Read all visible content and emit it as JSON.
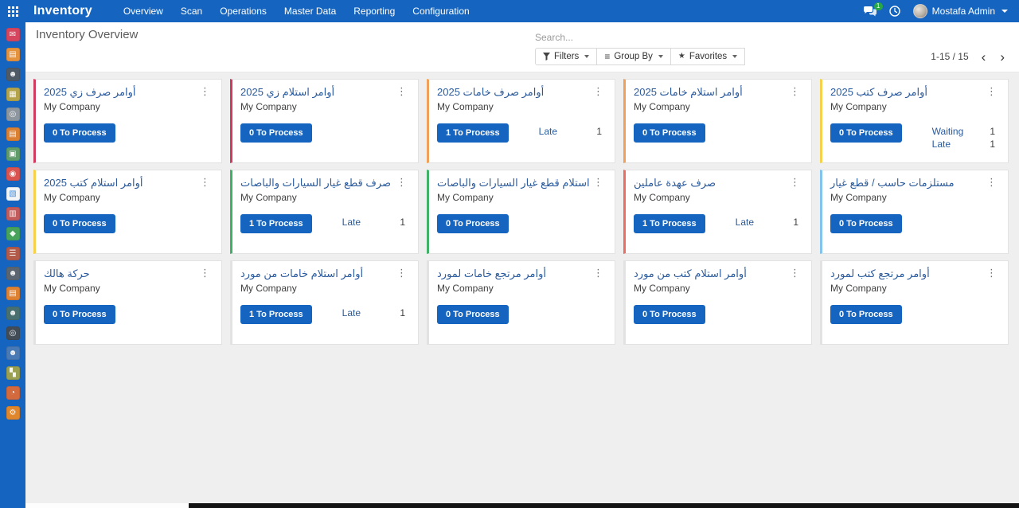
{
  "app": {
    "name": "Inventory"
  },
  "topbar": {
    "menus": [
      "Overview",
      "Scan",
      "Operations",
      "Master Data",
      "Reporting",
      "Configuration"
    ],
    "messages_badge": "1",
    "user_name": "Mostafa Admin"
  },
  "control_panel": {
    "breadcrumb": "Inventory Overview",
    "search_placeholder": "Search...",
    "filters_label": "Filters",
    "group_by_label": "Group By",
    "favorites_label": "Favorites",
    "pager": "1-15 / 15",
    "pager_prev": "‹",
    "pager_next": "›"
  },
  "kanban": {
    "cards": [
      {
        "title": "أوامر صرف زي 2025",
        "company": "My Company",
        "button": "0 To Process",
        "accent": "#d23b60",
        "stats": []
      },
      {
        "title": "أوامر استلام زي 2025",
        "company": "My Company",
        "button": "0 To Process",
        "accent": "#d23b60",
        "stats": []
      },
      {
        "title": "أوامر صرف خامات 2025",
        "company": "My Company",
        "button": "1 To Process",
        "accent": "#efa15c",
        "stats": [
          {
            "label": "Late",
            "value": "1"
          }
        ]
      },
      {
        "title": "أوامر استلام خامات 2025",
        "company": "My Company",
        "button": "0 To Process",
        "accent": "#efa15c",
        "stats": []
      },
      {
        "title": "أوامر صرف كتب 2025",
        "company": "My Company",
        "button": "0 To Process",
        "accent": "#f6d14c",
        "stats": [
          {
            "label": "Waiting",
            "value": "1"
          },
          {
            "label": "Late",
            "value": "1"
          }
        ]
      },
      {
        "title": "أوامر استلام كتب 2025",
        "company": "My Company",
        "button": "0 To Process",
        "accent": "#f6d14c",
        "stats": []
      },
      {
        "title": "صرف قطع غيار السيارات والباصات",
        "company": "My Company",
        "button": "1 To Process",
        "accent": "#41b168",
        "stats": [
          {
            "label": "Late",
            "value": "1"
          }
        ]
      },
      {
        "title": "استلام قطع غيار السيارات والباصات",
        "company": "My Company",
        "button": "0 To Process",
        "accent": "#41b168",
        "stats": []
      },
      {
        "title": "صرف عهدة عاملين",
        "company": "My Company",
        "button": "1 To Process",
        "accent": "#ec6d62",
        "stats": [
          {
            "label": "Late",
            "value": "1"
          }
        ]
      },
      {
        "title": "مستلزمات حاسب / قطع غيار",
        "company": "My Company",
        "button": "0 To Process",
        "accent": "#82c4ec",
        "stats": []
      },
      {
        "title": "حركة هالك",
        "company": "My Company",
        "button": "0 To Process",
        "accent": null,
        "stats": []
      },
      {
        "title": "أوامر استلام خامات من مورد",
        "company": "My Company",
        "button": "1 To Process",
        "accent": null,
        "stats": [
          {
            "label": "Late",
            "value": "1"
          }
        ]
      },
      {
        "title": "أوامر مرتجع خامات لمورد",
        "company": "My Company",
        "button": "0 To Process",
        "accent": null,
        "stats": []
      },
      {
        "title": "أوامر استلام كتب من مورد",
        "company": "My Company",
        "button": "0 To Process",
        "accent": null,
        "stats": []
      },
      {
        "title": "أوامر مرتجع كتب لمورد",
        "company": "My Company",
        "button": "0 To Process",
        "accent": null,
        "stats": []
      }
    ]
  },
  "sidebar": {
    "apps": [
      {
        "icon": "discuss-icon",
        "color": "#d6455e",
        "glyph": "✉"
      },
      {
        "icon": "documents-icon",
        "color": "#e5923e",
        "glyph": "▤"
      },
      {
        "icon": "crm-icon",
        "color": "#4e5a66",
        "glyph": "☻"
      },
      {
        "icon": "calendar-icon",
        "color": "#b3a44b",
        "glyph": "▦"
      },
      {
        "icon": "search-app-icon",
        "color": "#8d969e",
        "glyph": "◎"
      },
      {
        "icon": "invoicing-icon",
        "color": "#da8033",
        "glyph": "▤"
      },
      {
        "icon": "contacts-card-icon",
        "color": "#5f9c6a",
        "glyph": "▣"
      },
      {
        "icon": "pos-icon",
        "color": "#d95450",
        "glyph": "◉"
      },
      {
        "icon": "dashboard-icon",
        "color": "#f2f4f6",
        "glyph": "▧"
      },
      {
        "icon": "inventory-icon",
        "color": "#c25c5c",
        "glyph": "▥"
      },
      {
        "icon": "field-service-icon",
        "color": "#47a35c",
        "glyph": "◆"
      },
      {
        "icon": "purchase-icon",
        "color": "#b25a4a",
        "glyph": "☰"
      },
      {
        "icon": "employees-icon",
        "color": "#5b6571",
        "glyph": "☻"
      },
      {
        "icon": "accounting-icon",
        "color": "#dd8133",
        "glyph": "▤"
      },
      {
        "icon": "members-icon",
        "color": "#497070",
        "glyph": "☻"
      },
      {
        "icon": "recruitment-icon",
        "color": "#414c57",
        "glyph": "◎"
      },
      {
        "icon": "contacts-icon",
        "color": "#4a7ab5",
        "glyph": "☻"
      },
      {
        "icon": "studio-icon",
        "color": "#9ba050",
        "glyph": "▚"
      },
      {
        "icon": "expenses-icon",
        "color": "#d26a3e",
        "glyph": "◔"
      },
      {
        "icon": "settings-icon",
        "color": "#e0862d",
        "glyph": "⚙"
      }
    ]
  }
}
